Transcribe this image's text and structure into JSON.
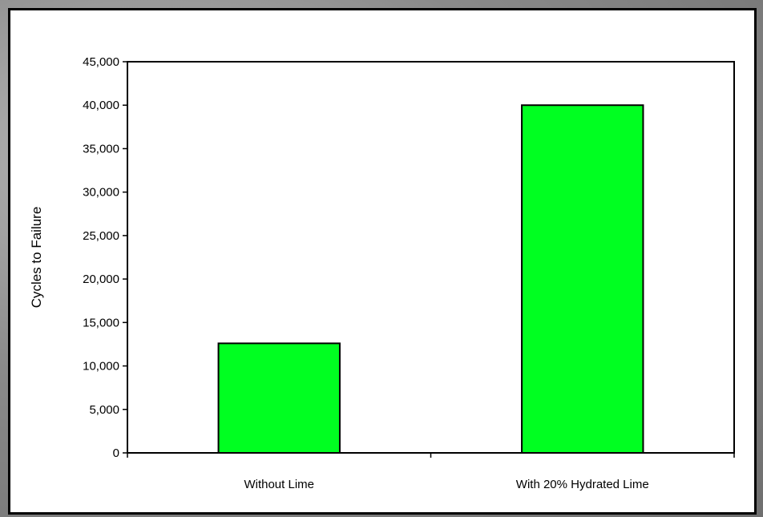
{
  "chart_data": {
    "type": "bar",
    "title": "",
    "xlabel": "",
    "ylabel": "Cycles to Failure",
    "categories": [
      "Without Lime",
      "With 20% Hydrated Lime"
    ],
    "values": [
      12600,
      40000
    ],
    "ylim": [
      0,
      45000
    ],
    "yticks": [
      0,
      5000,
      10000,
      15000,
      20000,
      25000,
      30000,
      35000,
      40000,
      45000
    ],
    "ytick_labels": [
      "0",
      "5,000",
      "10,000",
      "15,000",
      "20,000",
      "25,000",
      "30,000",
      "35,000",
      "40,000",
      "45,000"
    ],
    "bar_color": "#00ff21",
    "grid": false,
    "legend": "none"
  }
}
